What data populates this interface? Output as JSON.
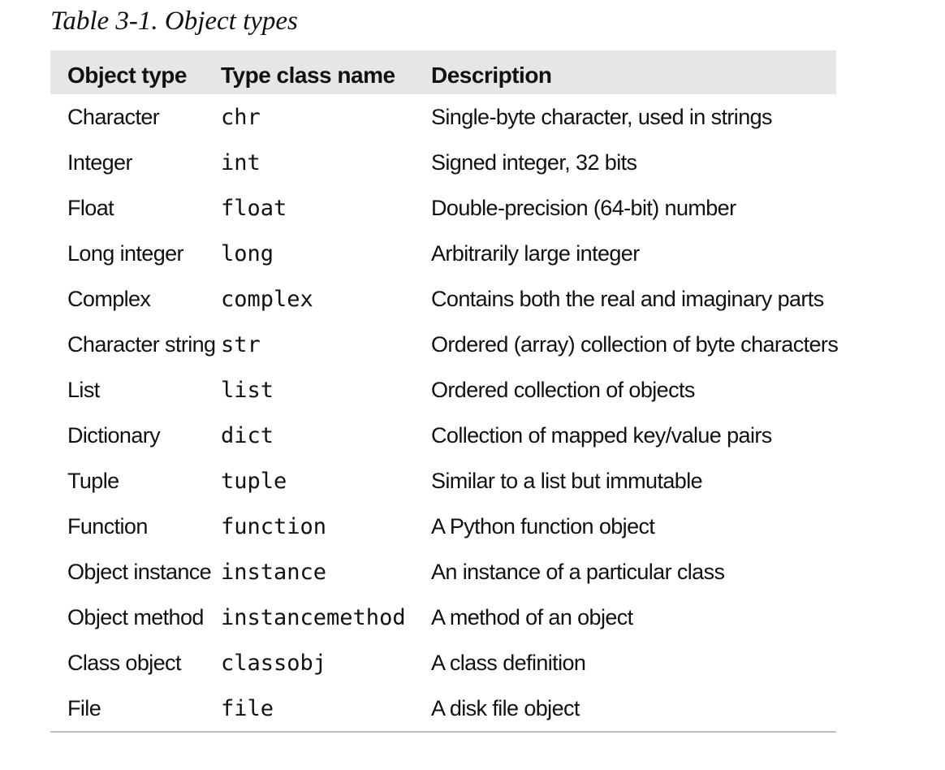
{
  "caption": "Table 3-1. Object types",
  "table": {
    "headers": [
      "Object type",
      "Type class name",
      "Description"
    ],
    "rows": [
      [
        "Character",
        "chr",
        "Single-byte character, used in strings"
      ],
      [
        "Integer",
        "int",
        "Signed integer, 32 bits"
      ],
      [
        "Float",
        "float",
        "Double-precision (64-bit) number"
      ],
      [
        "Long integer",
        "long",
        "Arbitrarily large integer"
      ],
      [
        "Complex",
        "complex",
        "Contains both the real and imaginary parts"
      ],
      [
        "Character string",
        "str",
        "Ordered (array) collection of byte characters"
      ],
      [
        "List",
        "list",
        "Ordered collection of objects"
      ],
      [
        "Dictionary",
        "dict",
        "Collection of mapped key/value pairs"
      ],
      [
        "Tuple",
        "tuple",
        "Similar to a list but immutable"
      ],
      [
        "Function",
        "function",
        "A Python function object"
      ],
      [
        "Object instance",
        "instance",
        "An instance of a particular class"
      ],
      [
        "Object method",
        "instancemethod",
        "A method of an object"
      ],
      [
        "Class object",
        "classobj",
        "A class definition"
      ],
      [
        "File",
        "file",
        "A disk file object"
      ]
    ]
  },
  "colors": {
    "header_background": "#e6e6e6",
    "rule": "#bdbdbd",
    "text": "#111111"
  }
}
